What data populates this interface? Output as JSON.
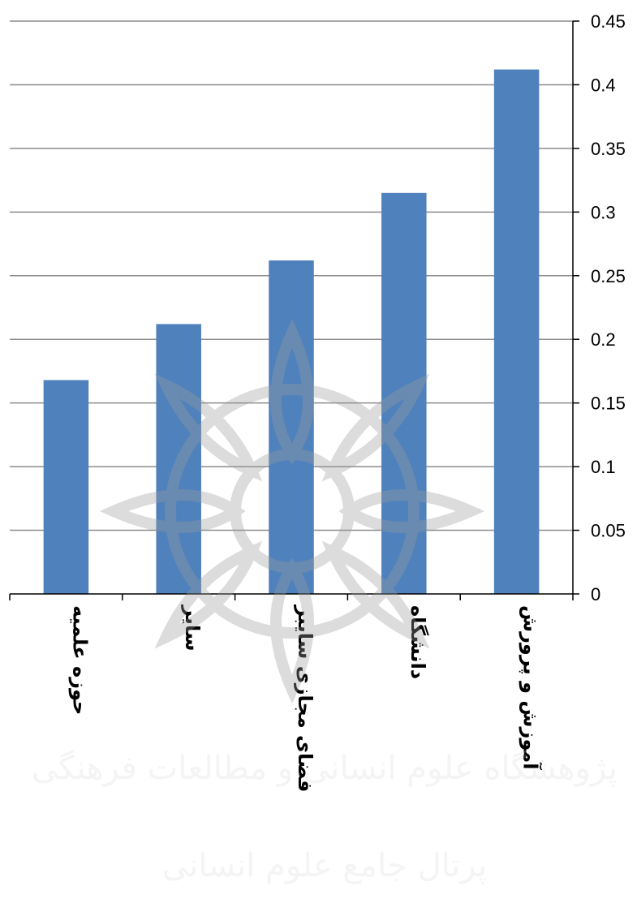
{
  "chart_data": {
    "type": "bar",
    "categories": [
      "حوزه علمیه",
      "سایر",
      "فضای مجازی سایبر",
      "دانشگاه",
      "آموزش و پرورش"
    ],
    "values": [
      0.168,
      0.212,
      0.262,
      0.315,
      0.412
    ],
    "ylim": [
      0,
      0.45
    ],
    "yticks": [
      "0",
      "0.05",
      "0.1",
      "0.15",
      "0.2",
      "0.25",
      "0.3",
      "0.35",
      "0.4",
      "0.45"
    ],
    "grid": true,
    "axis_side": "right",
    "title": "",
    "xlabel": "",
    "ylabel": ""
  },
  "colors": {
    "bar": "#4f81bd",
    "grid": "#8c8c8c",
    "watermark": "#b8b8b8"
  },
  "watermark": {
    "line1": "پژوهشگاه علوم انسانی و مطالعات فرهنگی",
    "line2": "پرتال جامع علوم انسانی"
  }
}
